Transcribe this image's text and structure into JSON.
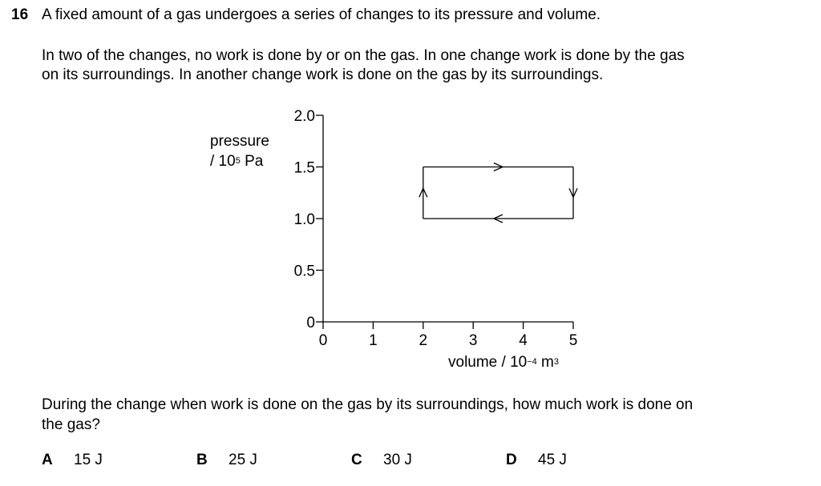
{
  "question": {
    "number": "16",
    "text": "A fixed amount of a gas undergoes a series of changes to its pressure and volume.",
    "context_line1": "In two of the changes, no work is done by or on the gas. In one change work is done by the gas",
    "context_line2": "on its surroundings. In another change work is done on the gas by its surroundings.",
    "ask_line1": "During the change when work is done on the gas by its surroundings, how much work is done on",
    "ask_line2": "the gas?"
  },
  "axis": {
    "y_label_line1": "pressure",
    "y_label_prefix": "/ 10",
    "y_label_exp": "5",
    "y_label_unit": " Pa",
    "x_label_prefix": "volume / 10",
    "x_label_exp": "−4",
    "x_label_unit": " m",
    "x_label_unit_exp": "3"
  },
  "chart_data": {
    "type": "line",
    "xlim": [
      0,
      5
    ],
    "ylim": [
      0,
      2.0
    ],
    "x_ticks": [
      0,
      1,
      2,
      3,
      4,
      5
    ],
    "x_tick_labels": [
      "0",
      "1",
      "2",
      "3",
      "4",
      "5"
    ],
    "y_ticks": [
      0,
      0.5,
      1.0,
      1.5,
      2.0
    ],
    "y_tick_labels": [
      "0",
      "0.5",
      "1.0",
      "1.5",
      "2.0"
    ],
    "cycle": [
      [
        2,
        1.0
      ],
      [
        2,
        1.5
      ],
      [
        5,
        1.5
      ],
      [
        5,
        1.0
      ],
      [
        2,
        1.0
      ]
    ],
    "grid": false
  },
  "options": [
    {
      "letter": "A",
      "value": "15 J"
    },
    {
      "letter": "B",
      "value": "25 J"
    },
    {
      "letter": "C",
      "value": "30 J"
    },
    {
      "letter": "D",
      "value": "45 J"
    }
  ]
}
